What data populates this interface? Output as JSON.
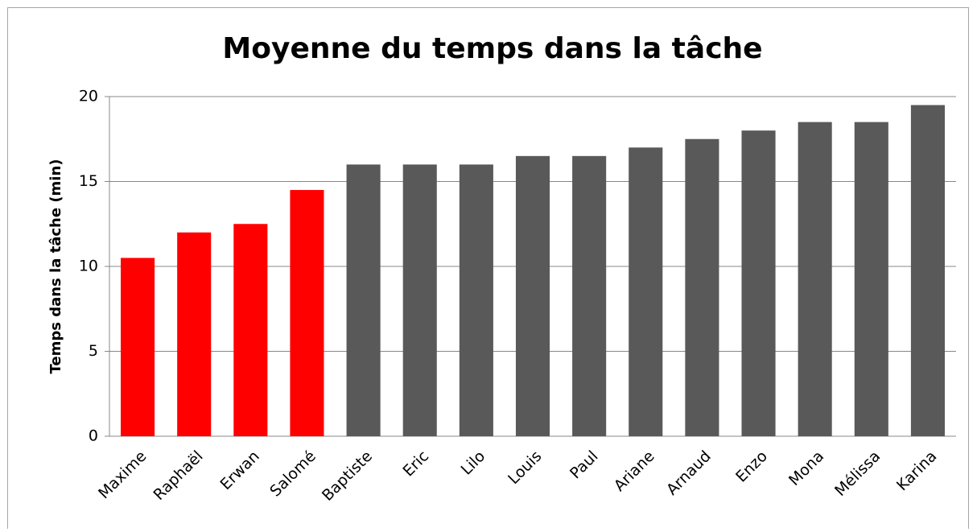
{
  "chart_data": {
    "type": "bar",
    "title": "Moyenne du temps dans la tâche",
    "y_label": "Temps dans la tâche (min)",
    "categories": [
      "Maxime",
      "Raphaël",
      "Erwan",
      "Salomé",
      "Baptiste",
      "Eric",
      "Lilo",
      "Louis",
      "Paul",
      "Ariane",
      "Arnaud",
      "Enzo",
      "Mona",
      "Mélissa",
      "Karina"
    ],
    "values": [
      10.5,
      12,
      12.5,
      14.5,
      16,
      16,
      16,
      16.5,
      16.5,
      17,
      17.5,
      18,
      18.5,
      18.5,
      19.5
    ],
    "colors": [
      "#ff0000",
      "#ff0000",
      "#ff0000",
      "#ff0000",
      "#595959",
      "#595959",
      "#595959",
      "#595959",
      "#595959",
      "#595959",
      "#595959",
      "#595959",
      "#595959",
      "#595959",
      "#595959"
    ],
    "ylim": [
      0,
      20
    ],
    "yticks": [
      0,
      5,
      10,
      15,
      20
    ],
    "grid": true
  }
}
